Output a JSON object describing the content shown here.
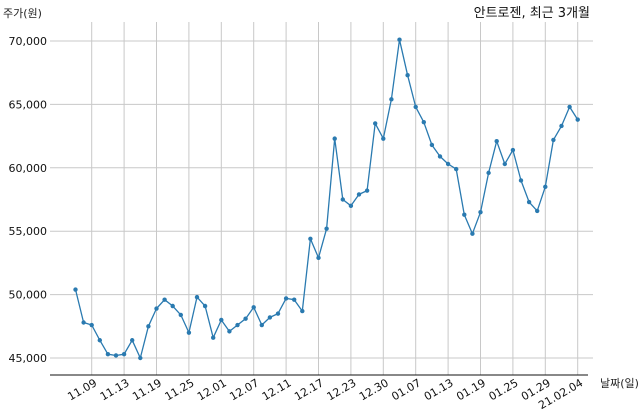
{
  "chart_data": {
    "type": "line",
    "title": "안트로젠, 최근 3개월",
    "ylabel": "주가(원)",
    "xlabel": "날짜(일)",
    "ylim": [
      43500,
      71500
    ],
    "yticks": [
      45000,
      50000,
      55000,
      60000,
      65000,
      70000
    ],
    "ytick_labels": [
      "45,000",
      "50,000",
      "55,000",
      "60,000",
      "65,000",
      "70,000"
    ],
    "xtick_labels": [
      "11.09",
      "11.13",
      "11.19",
      "11.25",
      "12.01",
      "12.07",
      "12.11",
      "12.17",
      "12.23",
      "12.30",
      "01.07",
      "01.13",
      "01.19",
      "01.25",
      "01.29",
      "21.02.04"
    ],
    "xtick_indices": [
      2,
      6,
      10,
      14,
      18,
      22,
      26,
      30,
      34,
      38,
      42,
      46,
      50,
      54,
      58,
      62
    ],
    "grid": true,
    "line_color": "#2a7ab0",
    "series": [
      {
        "values": [
          50400,
          47800,
          47600,
          46400,
          45300,
          45200,
          45300,
          46400,
          45000,
          47500,
          48900,
          49600,
          49100,
          48400,
          47000,
          49800,
          49100,
          46600,
          48000,
          47100,
          47600,
          48100,
          49000,
          47600,
          48200,
          48500,
          49700,
          49600,
          48700,
          54400,
          52900,
          55200,
          62300,
          57500,
          57000,
          57900,
          58200,
          63500,
          62300,
          65400,
          70100,
          67300,
          64800,
          63600,
          61800,
          60900,
          60300,
          59900,
          56300,
          54800,
          56500,
          59600,
          62100,
          60300,
          61400,
          59000,
          57300,
          56600,
          58500,
          62200,
          63300,
          64800,
          63800
        ]
      }
    ]
  }
}
